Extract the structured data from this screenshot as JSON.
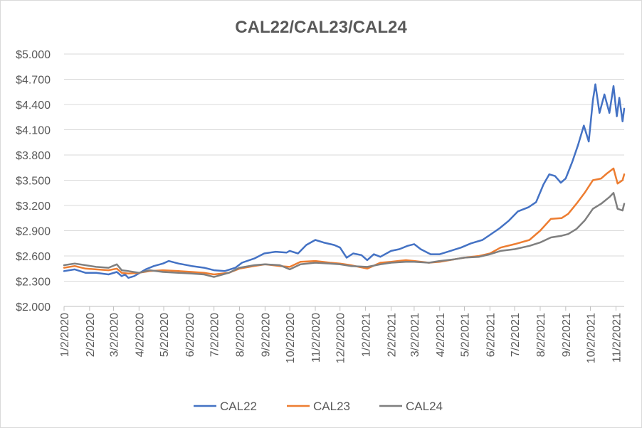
{
  "chart_data": {
    "type": "line",
    "title": "CAL22/CAL23/CAL24",
    "xlabel": "",
    "ylabel": "",
    "ylim": [
      2.0,
      5.0
    ],
    "y_ticks": [
      "$2.000",
      "$2.300",
      "$2.600",
      "$2.900",
      "$3.200",
      "$3.500",
      "$3.800",
      "$4.100",
      "$4.400",
      "$4.700",
      "$5.000"
    ],
    "x_range": [
      "2020-01-02",
      "2021-11-12"
    ],
    "x_ticks": [
      "1/2/2020",
      "2/2/2020",
      "3/2/2020",
      "4/2/2020",
      "5/2/2020",
      "6/2/2020",
      "7/2/2020",
      "8/2/2020",
      "9/2/2020",
      "10/2/2020",
      "11/2/2020",
      "12/2/2020",
      "1/2/2021",
      "2/2/2021",
      "3/2/2021",
      "4/2/2021",
      "5/2/2021",
      "6/2/2021",
      "7/2/2021",
      "8/2/2021",
      "9/2/2021",
      "10/2/2021",
      "11/2/2021"
    ],
    "grid": "horizontal",
    "legend": "bottom",
    "series": [
      {
        "name": "CAL22",
        "color": "#4472C4",
        "points": [
          [
            "2020-01-02",
            2.42
          ],
          [
            "2020-01-15",
            2.44
          ],
          [
            "2020-01-28",
            2.4
          ],
          [
            "2020-02-10",
            2.4
          ],
          [
            "2020-02-25",
            2.38
          ],
          [
            "2020-03-06",
            2.41
          ],
          [
            "2020-03-12",
            2.36
          ],
          [
            "2020-03-16",
            2.38
          ],
          [
            "2020-03-20",
            2.34
          ],
          [
            "2020-03-27",
            2.36
          ],
          [
            "2020-04-03",
            2.4
          ],
          [
            "2020-04-10",
            2.44
          ],
          [
            "2020-04-20",
            2.48
          ],
          [
            "2020-05-01",
            2.51
          ],
          [
            "2020-05-08",
            2.54
          ],
          [
            "2020-05-20",
            2.51
          ],
          [
            "2020-06-05",
            2.48
          ],
          [
            "2020-06-20",
            2.46
          ],
          [
            "2020-07-02",
            2.43
          ],
          [
            "2020-07-15",
            2.42
          ],
          [
            "2020-07-28",
            2.46
          ],
          [
            "2020-08-05",
            2.52
          ],
          [
            "2020-08-20",
            2.57
          ],
          [
            "2020-09-01",
            2.63
          ],
          [
            "2020-09-15",
            2.65
          ],
          [
            "2020-09-28",
            2.64
          ],
          [
            "2020-10-02",
            2.66
          ],
          [
            "2020-10-12",
            2.63
          ],
          [
            "2020-10-22",
            2.73
          ],
          [
            "2020-11-02",
            2.79
          ],
          [
            "2020-11-12",
            2.76
          ],
          [
            "2020-11-25",
            2.73
          ],
          [
            "2020-12-02",
            2.7
          ],
          [
            "2020-12-10",
            2.58
          ],
          [
            "2020-12-18",
            2.63
          ],
          [
            "2020-12-28",
            2.61
          ],
          [
            "2021-01-04",
            2.55
          ],
          [
            "2021-01-12",
            2.62
          ],
          [
            "2021-01-20",
            2.59
          ],
          [
            "2021-02-02",
            2.66
          ],
          [
            "2021-02-12",
            2.68
          ],
          [
            "2021-02-22",
            2.72
          ],
          [
            "2021-03-02",
            2.74
          ],
          [
            "2021-03-10",
            2.68
          ],
          [
            "2021-03-22",
            2.62
          ],
          [
            "2021-04-02",
            2.62
          ],
          [
            "2021-04-15",
            2.66
          ],
          [
            "2021-04-28",
            2.7
          ],
          [
            "2021-05-10",
            2.75
          ],
          [
            "2021-05-24",
            2.79
          ],
          [
            "2021-06-02",
            2.85
          ],
          [
            "2021-06-14",
            2.93
          ],
          [
            "2021-06-25",
            3.02
          ],
          [
            "2021-07-06",
            3.13
          ],
          [
            "2021-07-19",
            3.18
          ],
          [
            "2021-07-28",
            3.24
          ],
          [
            "2021-08-06",
            3.45
          ],
          [
            "2021-08-13",
            3.57
          ],
          [
            "2021-08-20",
            3.55
          ],
          [
            "2021-08-27",
            3.47
          ],
          [
            "2021-09-02",
            3.52
          ],
          [
            "2021-09-10",
            3.72
          ],
          [
            "2021-09-17",
            3.92
          ],
          [
            "2021-09-24",
            4.15
          ],
          [
            "2021-09-30",
            3.96
          ],
          [
            "2021-10-05",
            4.45
          ],
          [
            "2021-10-08",
            4.64
          ],
          [
            "2021-10-13",
            4.3
          ],
          [
            "2021-10-19",
            4.52
          ],
          [
            "2021-10-25",
            4.3
          ],
          [
            "2021-10-30",
            4.62
          ],
          [
            "2021-11-03",
            4.26
          ],
          [
            "2021-11-06",
            4.48
          ],
          [
            "2021-11-10",
            4.2
          ],
          [
            "2021-11-12",
            4.35
          ]
        ]
      },
      {
        "name": "CAL23",
        "color": "#ED7D31",
        "points": [
          [
            "2020-01-02",
            2.46
          ],
          [
            "2020-01-15",
            2.48
          ],
          [
            "2020-01-28",
            2.45
          ],
          [
            "2020-02-10",
            2.44
          ],
          [
            "2020-02-25",
            2.43
          ],
          [
            "2020-03-06",
            2.45
          ],
          [
            "2020-03-12",
            2.4
          ],
          [
            "2020-03-20",
            2.39
          ],
          [
            "2020-04-02",
            2.4
          ],
          [
            "2020-04-15",
            2.42
          ],
          [
            "2020-05-01",
            2.43
          ],
          [
            "2020-05-20",
            2.42
          ],
          [
            "2020-06-05",
            2.41
          ],
          [
            "2020-06-20",
            2.4
          ],
          [
            "2020-07-02",
            2.38
          ],
          [
            "2020-07-20",
            2.4
          ],
          [
            "2020-08-02",
            2.45
          ],
          [
            "2020-08-20",
            2.48
          ],
          [
            "2020-09-02",
            2.5
          ],
          [
            "2020-09-20",
            2.48
          ],
          [
            "2020-10-02",
            2.47
          ],
          [
            "2020-10-15",
            2.53
          ],
          [
            "2020-11-02",
            2.54
          ],
          [
            "2020-11-20",
            2.52
          ],
          [
            "2020-12-02",
            2.51
          ],
          [
            "2020-12-15",
            2.49
          ],
          [
            "2021-01-04",
            2.45
          ],
          [
            "2021-01-20",
            2.52
          ],
          [
            "2021-02-02",
            2.53
          ],
          [
            "2021-02-20",
            2.55
          ],
          [
            "2021-03-02",
            2.54
          ],
          [
            "2021-03-20",
            2.52
          ],
          [
            "2021-04-02",
            2.53
          ],
          [
            "2021-04-20",
            2.56
          ],
          [
            "2021-05-02",
            2.58
          ],
          [
            "2021-05-20",
            2.6
          ],
          [
            "2021-06-02",
            2.63
          ],
          [
            "2021-06-15",
            2.7
          ],
          [
            "2021-07-02",
            2.74
          ],
          [
            "2021-07-20",
            2.79
          ],
          [
            "2021-08-02",
            2.9
          ],
          [
            "2021-08-15",
            3.04
          ],
          [
            "2021-08-28",
            3.05
          ],
          [
            "2021-09-05",
            3.1
          ],
          [
            "2021-09-15",
            3.22
          ],
          [
            "2021-09-25",
            3.35
          ],
          [
            "2021-10-05",
            3.5
          ],
          [
            "2021-10-15",
            3.52
          ],
          [
            "2021-10-22",
            3.58
          ],
          [
            "2021-10-30",
            3.64
          ],
          [
            "2021-11-04",
            3.46
          ],
          [
            "2021-11-10",
            3.5
          ],
          [
            "2021-11-12",
            3.57
          ]
        ]
      },
      {
        "name": "CAL24",
        "color": "#7F7F7F",
        "points": [
          [
            "2020-01-02",
            2.49
          ],
          [
            "2020-01-15",
            2.51
          ],
          [
            "2020-01-28",
            2.49
          ],
          [
            "2020-02-10",
            2.47
          ],
          [
            "2020-02-25",
            2.46
          ],
          [
            "2020-03-06",
            2.5
          ],
          [
            "2020-03-12",
            2.43
          ],
          [
            "2020-03-20",
            2.42
          ],
          [
            "2020-04-02",
            2.4
          ],
          [
            "2020-04-15",
            2.43
          ],
          [
            "2020-05-01",
            2.41
          ],
          [
            "2020-05-20",
            2.4
          ],
          [
            "2020-06-05",
            2.39
          ],
          [
            "2020-06-20",
            2.38
          ],
          [
            "2020-07-02",
            2.35
          ],
          [
            "2020-07-20",
            2.4
          ],
          [
            "2020-08-02",
            2.46
          ],
          [
            "2020-08-20",
            2.49
          ],
          [
            "2020-09-02",
            2.5
          ],
          [
            "2020-09-20",
            2.49
          ],
          [
            "2020-10-02",
            2.44
          ],
          [
            "2020-10-15",
            2.5
          ],
          [
            "2020-11-02",
            2.52
          ],
          [
            "2020-11-20",
            2.51
          ],
          [
            "2020-12-02",
            2.5
          ],
          [
            "2020-12-15",
            2.48
          ],
          [
            "2021-01-04",
            2.47
          ],
          [
            "2021-01-20",
            2.5
          ],
          [
            "2021-02-02",
            2.52
          ],
          [
            "2021-02-20",
            2.53
          ],
          [
            "2021-03-02",
            2.53
          ],
          [
            "2021-03-20",
            2.52
          ],
          [
            "2021-04-02",
            2.54
          ],
          [
            "2021-04-20",
            2.56
          ],
          [
            "2021-05-02",
            2.58
          ],
          [
            "2021-05-20",
            2.59
          ],
          [
            "2021-06-02",
            2.62
          ],
          [
            "2021-06-15",
            2.66
          ],
          [
            "2021-07-02",
            2.68
          ],
          [
            "2021-07-20",
            2.72
          ],
          [
            "2021-08-02",
            2.76
          ],
          [
            "2021-08-15",
            2.82
          ],
          [
            "2021-08-28",
            2.84
          ],
          [
            "2021-09-05",
            2.86
          ],
          [
            "2021-09-15",
            2.92
          ],
          [
            "2021-09-25",
            3.02
          ],
          [
            "2021-10-05",
            3.16
          ],
          [
            "2021-10-15",
            3.22
          ],
          [
            "2021-10-25",
            3.3
          ],
          [
            "2021-10-30",
            3.35
          ],
          [
            "2021-11-04",
            3.16
          ],
          [
            "2021-11-10",
            3.14
          ],
          [
            "2021-11-12",
            3.22
          ]
        ]
      }
    ]
  }
}
